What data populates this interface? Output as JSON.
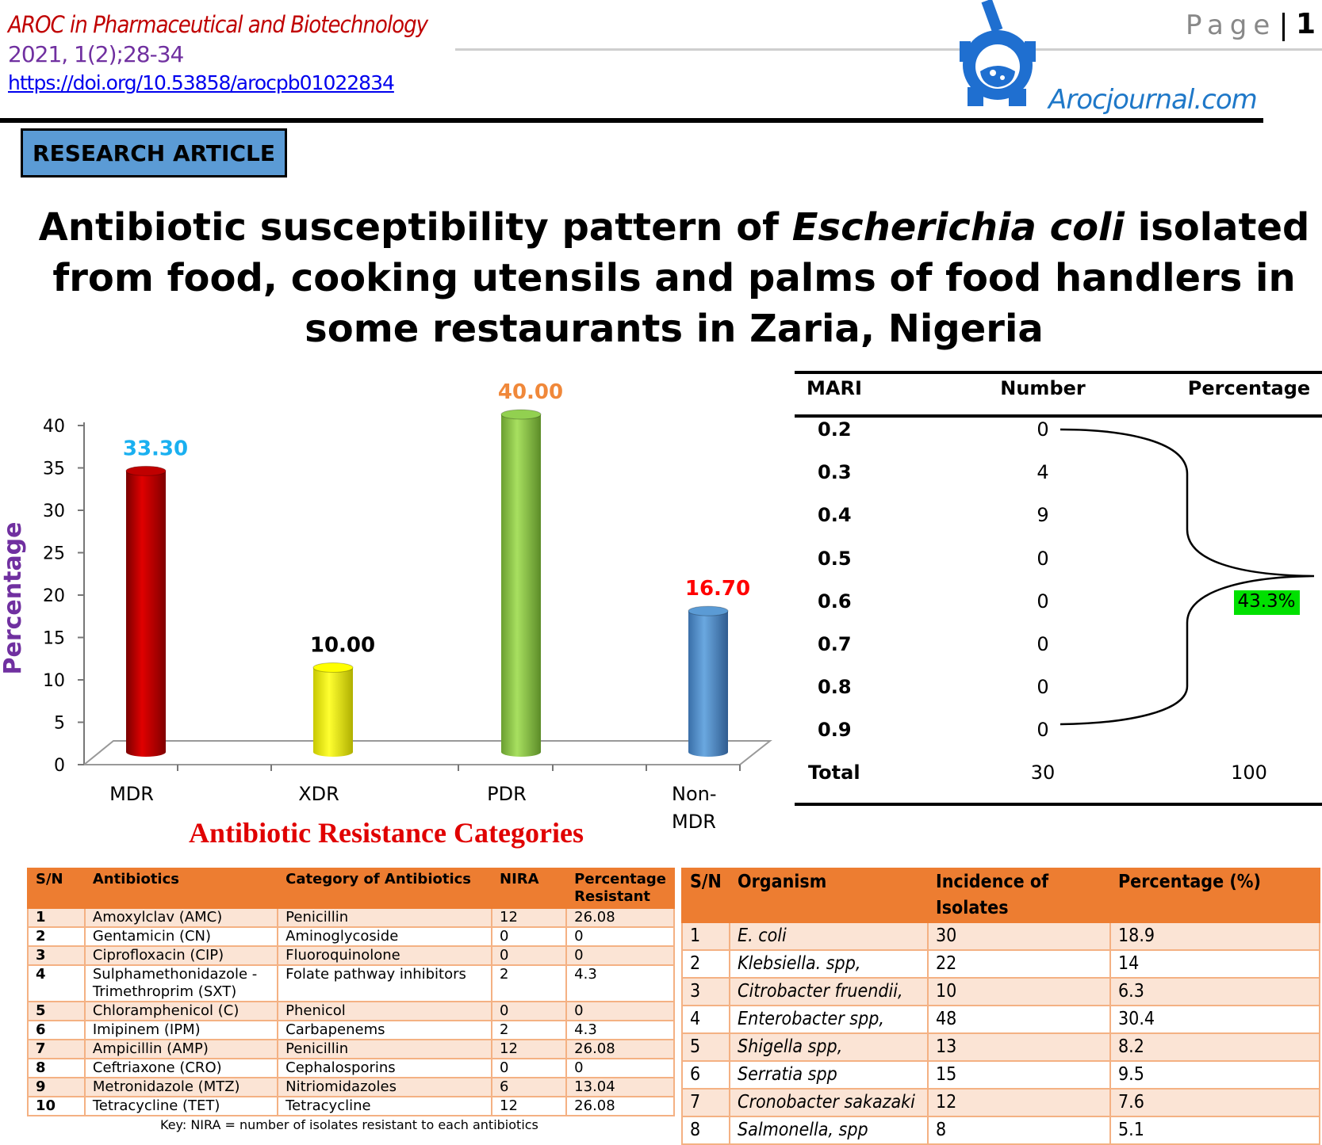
{
  "header": {
    "journal": "AROC in Pharmaceutical and Biotechnology",
    "volume": "2021, 1(2);28-34",
    "doi": "https://doi.org/10.53858/arocpb01022834",
    "page_label": "Page",
    "page_number": "1",
    "site": "Arocjournal.com"
  },
  "badge": "RESEARCH ARTICLE",
  "title": {
    "part1": "Antibiotic susceptibility pattern of ",
    "italic": "Escherichia coli",
    "part2": " isolated from food, cooking utensils and palms of food handlers in some restaurants in Zaria, Nigeria"
  },
  "colors": {
    "accent_orange": "#ed7d31",
    "row_tint": "#fbe4d5",
    "badge_blue": "#5b9bd5"
  },
  "chart_data": {
    "type": "bar",
    "title": "",
    "xlabel": "Antibiotic Resistance Categories",
    "ylabel": "Percentage",
    "ylim": [
      0,
      40
    ],
    "yticks": [
      "0",
      "5",
      "10",
      "15",
      "20",
      "25",
      "30",
      "35",
      "40"
    ],
    "categories": [
      "MDR",
      "XDR",
      "PDR",
      "Non-MDR"
    ],
    "values": [
      33.3,
      10.0,
      40.0,
      16.7
    ],
    "labels": [
      "33.30",
      "10.00",
      "40.00",
      "16.70"
    ],
    "bar_colors": [
      "#c00000",
      "#ffff00",
      "#92d050",
      "#5b9bd5"
    ],
    "label_colors": [
      "#1ab0f0",
      "#000000",
      "#f0883a",
      "#ff0000"
    ],
    "grid": false,
    "style": "3d-cylinder"
  },
  "mari_table": {
    "headers": [
      "MARI",
      "Number",
      "Percentage"
    ],
    "rows": [
      {
        "mari": "0.2",
        "number": "0"
      },
      {
        "mari": "0.3",
        "number": "4"
      },
      {
        "mari": "0.4",
        "number": "9"
      },
      {
        "mari": "0.5",
        "number": "0"
      },
      {
        "mari": "0.6",
        "number": "0"
      },
      {
        "mari": "0.7",
        "number": "0"
      },
      {
        "mari": "0.8",
        "number": "0"
      },
      {
        "mari": "0.9",
        "number": "0"
      }
    ],
    "total": {
      "label": "Total",
      "number": "30",
      "percentage": "100"
    },
    "brace_percentage": "43.3%",
    "brace_color": "#00e000"
  },
  "antibiotics_table": {
    "headers": [
      "S/N",
      "Antibiotics",
      "Category of Antibiotics",
      "NIRA",
      "Percentage Resistant"
    ],
    "rows": [
      [
        "1",
        "Amoxylclav (AMC)",
        "Penicillin",
        "12",
        "26.08"
      ],
      [
        "2",
        "Gentamicin (CN)",
        "Aminoglycoside",
        "0",
        "0"
      ],
      [
        "3",
        "Ciprofloxacin (CIP)",
        "Fluoroquinolone",
        "0",
        "0"
      ],
      [
        "4",
        "Sulphamethonidazole - Trimethroprim (SXT)",
        "Folate pathway inhibitors",
        "2",
        "4.3"
      ],
      [
        "5",
        "Chloramphenicol (C)",
        "Phenicol",
        "0",
        "0"
      ],
      [
        "6",
        "Imipinem (IPM)",
        "Carbapenems",
        "2",
        "4.3"
      ],
      [
        "7",
        "Ampicillin (AMP)",
        "Penicillin",
        "12",
        "26.08"
      ],
      [
        "8",
        "Ceftriaxone (CRO)",
        "Cephalosporins",
        "0",
        "0"
      ],
      [
        "9",
        "Metronidazole (MTZ)",
        "Nitriomidazoles",
        "6",
        "13.04"
      ],
      [
        "10",
        "Tetracycline (TET)",
        "Tetracycline",
        "12",
        "26.08"
      ]
    ],
    "key": "Key: NIRA = number of isolates resistant to each antibiotics"
  },
  "organism_table": {
    "headers": [
      "S/N",
      "Organism",
      "Incidence of Isolates",
      "Percentage (%)"
    ],
    "rows": [
      [
        "1",
        "E. coli",
        "30",
        "18.9"
      ],
      [
        "2",
        "Klebsiella. spp,",
        "22",
        "14"
      ],
      [
        "3",
        "Citrobacter fruendii,",
        "10",
        "6.3"
      ],
      [
        "4",
        "Enterobacter spp,",
        "48",
        "30.4"
      ],
      [
        "5",
        "Shigella spp,",
        "13",
        "8.2"
      ],
      [
        "6",
        "Serratia spp",
        "15",
        "9.5"
      ],
      [
        "7",
        "Cronobacter sakazaki",
        "12",
        "7.6"
      ],
      [
        "8",
        "Salmonella, spp",
        "8",
        "5.1"
      ]
    ]
  }
}
